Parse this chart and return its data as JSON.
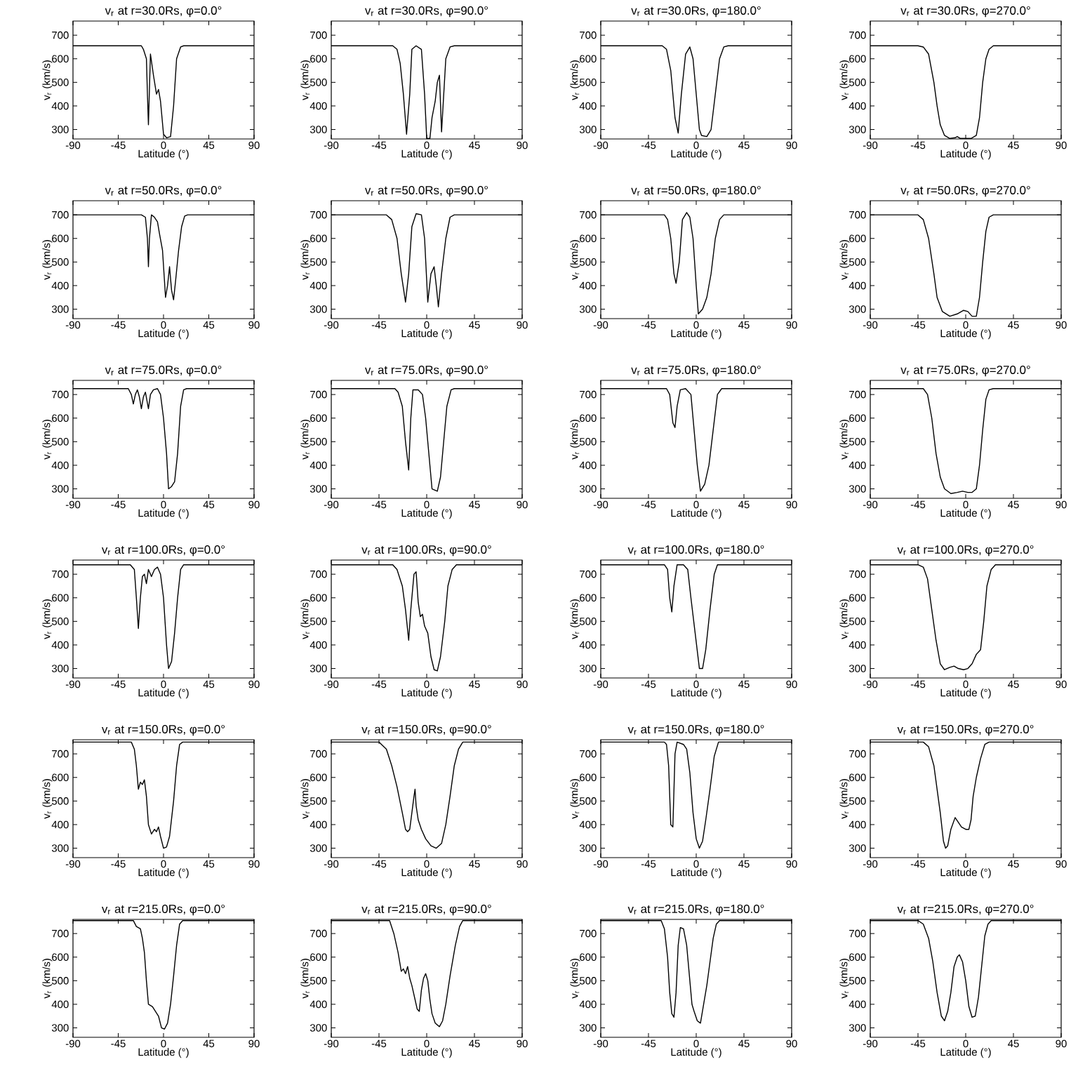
{
  "chart_data": [
    {
      "type": "line",
      "title": "v$_{r}$ at r=30.0Rs, φ=0.0°",
      "xlabel": "Latitude (°)",
      "ylabel": "v$_{r}$ (km/s)",
      "color": "#000000",
      "xlim": [
        -90,
        90
      ],
      "xticks": [
        -90,
        -45,
        0,
        45,
        90
      ],
      "ylim": [
        260,
        760
      ],
      "yticks": [
        300,
        400,
        500,
        600,
        700
      ],
      "x": [
        -90,
        -22,
        -20,
        -17,
        -16,
        -15,
        -13,
        -10,
        -7,
        -5,
        -3,
        0,
        3,
        7,
        10,
        13,
        17,
        20,
        90
      ],
      "values": [
        655,
        655,
        640,
        600,
        450,
        320,
        620,
        530,
        450,
        470,
        420,
        280,
        265,
        270,
        400,
        600,
        650,
        655,
        655
      ]
    },
    {
      "type": "line",
      "title": "v$_{r}$ at r=30.0Rs, φ=90.0°",
      "xlabel": "Latitude (°)",
      "ylabel": "v$_{r}$ (km/s)",
      "color": "#000000",
      "xlim": [
        -90,
        90
      ],
      "xticks": [
        -90,
        -45,
        0,
        45,
        90
      ],
      "ylim": [
        260,
        760
      ],
      "yticks": [
        300,
        400,
        500,
        600,
        700
      ],
      "x": [
        -90,
        -32,
        -28,
        -25,
        -22,
        -19,
        -16,
        -14,
        -10,
        -5,
        -2,
        0,
        3,
        5,
        8,
        10,
        12,
        14,
        18,
        22,
        26,
        90
      ],
      "values": [
        655,
        655,
        640,
        580,
        450,
        280,
        450,
        640,
        655,
        640,
        450,
        262,
        262,
        350,
        420,
        500,
        530,
        290,
        600,
        650,
        655,
        655
      ]
    },
    {
      "type": "line",
      "title": "v$_{r}$ at r=30.0Rs, φ=180.0°",
      "xlabel": "Latitude (°)",
      "ylabel": "v$_{r}$ (km/s)",
      "color": "#000000",
      "xlim": [
        -90,
        90
      ],
      "xticks": [
        -90,
        -45,
        0,
        45,
        90
      ],
      "ylim": [
        260,
        760
      ],
      "yticks": [
        300,
        400,
        500,
        600,
        700
      ],
      "x": [
        -90,
        -32,
        -28,
        -24,
        -20,
        -17,
        -14,
        -10,
        -6,
        -3,
        0,
        3,
        5,
        10,
        14,
        18,
        22,
        26,
        30,
        90
      ],
      "values": [
        655,
        655,
        640,
        550,
        350,
        285,
        450,
        620,
        650,
        600,
        450,
        300,
        275,
        270,
        300,
        450,
        600,
        650,
        655,
        655
      ]
    },
    {
      "type": "line",
      "title": "v$_{r}$ at r=30.0Rs, φ=270.0°",
      "xlabel": "Latitude (°)",
      "ylabel": "v$_{r}$ (km/s)",
      "color": "#000000",
      "xlim": [
        -90,
        90
      ],
      "xticks": [
        -90,
        -45,
        0,
        45,
        90
      ],
      "ylim": [
        260,
        760
      ],
      "yticks": [
        300,
        400,
        500,
        600,
        700
      ],
      "x": [
        -90,
        -45,
        -40,
        -35,
        -30,
        -27,
        -24,
        -20,
        -15,
        -10,
        -8,
        -5,
        0,
        5,
        10,
        13,
        16,
        19,
        22,
        26,
        90
      ],
      "values": [
        655,
        655,
        650,
        620,
        500,
        400,
        320,
        275,
        262,
        265,
        270,
        262,
        262,
        262,
        275,
        350,
        500,
        600,
        640,
        655,
        655
      ]
    },
    {
      "type": "line",
      "title": "v$_{r}$ at r=50.0Rs, φ=0.0°",
      "xlabel": "Latitude (°)",
      "ylabel": "v$_{r}$ (km/s)",
      "color": "#000000",
      "xlim": [
        -90,
        90
      ],
      "xticks": [
        -90,
        -45,
        0,
        45,
        90
      ],
      "ylim": [
        260,
        760
      ],
      "yticks": [
        300,
        400,
        500,
        600,
        700
      ],
      "x": [
        -90,
        -22,
        -18,
        -16,
        -15,
        -14,
        -12,
        -9,
        -6,
        -4,
        -1,
        2,
        4,
        6,
        8,
        10,
        12,
        15,
        18,
        21,
        24,
        90
      ],
      "values": [
        700,
        700,
        690,
        600,
        480,
        600,
        700,
        690,
        670,
        620,
        550,
        350,
        400,
        480,
        380,
        340,
        420,
        550,
        650,
        695,
        700,
        700
      ]
    },
    {
      "type": "line",
      "title": "v$_{r}$ at r=50.0Rs, φ=90.0°",
      "xlabel": "Latitude (°)",
      "ylabel": "v$_{r}$ (km/s)",
      "color": "#000000",
      "xlim": [
        -90,
        90
      ],
      "xticks": [
        -90,
        -45,
        0,
        45,
        90
      ],
      "ylim": [
        260,
        760
      ],
      "yticks": [
        300,
        400,
        500,
        600,
        700
      ],
      "x": [
        -90,
        -38,
        -33,
        -28,
        -24,
        -20,
        -17,
        -14,
        -10,
        -5,
        -2,
        1,
        4,
        7,
        9,
        11,
        14,
        18,
        22,
        26,
        90
      ],
      "values": [
        700,
        700,
        680,
        600,
        450,
        330,
        450,
        650,
        705,
        700,
        600,
        330,
        450,
        480,
        400,
        310,
        450,
        600,
        690,
        700,
        700
      ]
    },
    {
      "type": "line",
      "title": "v$_{r}$ at r=50.0Rs, φ=180.0°",
      "xlabel": "Latitude (°)",
      "ylabel": "v$_{r}$ (km/s)",
      "color": "#000000",
      "xlim": [
        -90,
        90
      ],
      "xticks": [
        -90,
        -45,
        0,
        45,
        90
      ],
      "ylim": [
        260,
        760
      ],
      "yticks": [
        300,
        400,
        500,
        600,
        700
      ],
      "x": [
        -90,
        -30,
        -27,
        -24,
        -21,
        -19,
        -16,
        -13,
        -9,
        -6,
        -3,
        0,
        2,
        6,
        10,
        14,
        18,
        22,
        26,
        90
      ],
      "values": [
        700,
        700,
        680,
        600,
        450,
        410,
        500,
        680,
        710,
        690,
        600,
        400,
        280,
        300,
        350,
        450,
        600,
        680,
        700,
        700
      ]
    },
    {
      "type": "line",
      "title": "v$_{r}$ at r=50.0Rs, φ=270.0°",
      "xlabel": "Latitude (°)",
      "ylabel": "v$_{r}$ (km/s)",
      "color": "#000000",
      "xlim": [
        -90,
        90
      ],
      "xticks": [
        -90,
        -45,
        0,
        45,
        90
      ],
      "ylim": [
        260,
        760
      ],
      "yticks": [
        300,
        400,
        500,
        600,
        700
      ],
      "x": [
        -90,
        -45,
        -40,
        -35,
        -30,
        -27,
        -22,
        -15,
        -8,
        -2,
        2,
        6,
        10,
        13,
        16,
        19,
        22,
        26,
        90
      ],
      "values": [
        700,
        700,
        680,
        600,
        450,
        350,
        290,
        270,
        280,
        295,
        290,
        270,
        270,
        350,
        500,
        630,
        690,
        700,
        700
      ]
    },
    {
      "type": "line",
      "title": "v$_{r}$ at r=75.0Rs, φ=0.0°",
      "xlabel": "Latitude (°)",
      "ylabel": "v$_{r}$ (km/s)",
      "color": "#000000",
      "xlim": [
        -90,
        90
      ],
      "xticks": [
        -90,
        -45,
        0,
        45,
        90
      ],
      "ylim": [
        260,
        760
      ],
      "yticks": [
        300,
        400,
        500,
        600,
        700
      ],
      "x": [
        -90,
        -35,
        -32,
        -30,
        -28,
        -26,
        -24,
        -22,
        -20,
        -18,
        -15,
        -13,
        -10,
        -6,
        -3,
        0,
        3,
        5,
        8,
        11,
        14,
        17,
        20,
        23,
        90
      ],
      "values": [
        725,
        725,
        700,
        660,
        700,
        720,
        690,
        640,
        690,
        710,
        640,
        700,
        720,
        725,
        700,
        600,
        450,
        300,
        310,
        330,
        450,
        650,
        720,
        725,
        725
      ]
    },
    {
      "type": "line",
      "title": "v$_{r}$ at r=75.0Rs, φ=90.0°",
      "xlabel": "Latitude (°)",
      "ylabel": "v$_{r}$ (km/s)",
      "color": "#000000",
      "xlim": [
        -90,
        90
      ],
      "xticks": [
        -90,
        -45,
        0,
        45,
        90
      ],
      "ylim": [
        260,
        760
      ],
      "yticks": [
        300,
        400,
        500,
        600,
        700
      ],
      "x": [
        -90,
        -30,
        -27,
        -23,
        -20,
        -17,
        -15,
        -13,
        -8,
        -4,
        -1,
        2,
        5,
        10,
        13,
        16,
        19,
        23,
        26,
        90
      ],
      "values": [
        725,
        725,
        710,
        650,
        500,
        380,
        600,
        720,
        720,
        700,
        600,
        450,
        300,
        290,
        350,
        500,
        650,
        720,
        725,
        725
      ]
    },
    {
      "type": "line",
      "title": "v$_{r}$ at r=75.0Rs, φ=180.0°",
      "xlabel": "Latitude (°)",
      "ylabel": "v$_{r}$ (km/s)",
      "color": "#000000",
      "xlim": [
        -90,
        90
      ],
      "xticks": [
        -90,
        -45,
        0,
        45,
        90
      ],
      "ylim": [
        260,
        760
      ],
      "yticks": [
        300,
        400,
        500,
        600,
        700
      ],
      "x": [
        -90,
        -28,
        -25,
        -22,
        -20,
        -18,
        -15,
        -10,
        -5,
        -2,
        1,
        4,
        8,
        12,
        16,
        20,
        24,
        90
      ],
      "values": [
        725,
        725,
        700,
        580,
        560,
        650,
        720,
        725,
        700,
        550,
        400,
        290,
        320,
        400,
        550,
        700,
        725,
        725
      ]
    },
    {
      "type": "line",
      "title": "v$_{r}$ at r=75.0Rs, φ=270.0°",
      "xlabel": "Latitude (°)",
      "ylabel": "v$_{r}$ (km/s)",
      "color": "#000000",
      "xlim": [
        -90,
        90
      ],
      "xticks": [
        -90,
        -45,
        0,
        45,
        90
      ],
      "ylim": [
        260,
        760
      ],
      "yticks": [
        300,
        400,
        500,
        600,
        700
      ],
      "x": [
        -90,
        -40,
        -36,
        -32,
        -28,
        -24,
        -20,
        -14,
        -8,
        -3,
        2,
        6,
        10,
        13,
        16,
        19,
        22,
        26,
        90
      ],
      "values": [
        725,
        725,
        700,
        600,
        450,
        350,
        300,
        280,
        285,
        290,
        285,
        285,
        300,
        400,
        550,
        680,
        720,
        725,
        725
      ]
    },
    {
      "type": "line",
      "title": "v$_{r}$ at r=100.0Rs, φ=0.0°",
      "xlabel": "Latitude (°)",
      "ylabel": "v$_{r}$ (km/s)",
      "color": "#000000",
      "xlim": [
        -90,
        90
      ],
      "xticks": [
        -90,
        -45,
        0,
        45,
        90
      ],
      "ylim": [
        260,
        760
      ],
      "yticks": [
        300,
        400,
        500,
        600,
        700
      ],
      "x": [
        -90,
        -33,
        -29,
        -27,
        -25,
        -23,
        -21,
        -19,
        -17,
        -15,
        -12,
        -9,
        -6,
        -3,
        0,
        3,
        5,
        8,
        11,
        14,
        17,
        20,
        90
      ],
      "values": [
        740,
        740,
        720,
        600,
        470,
        600,
        690,
        700,
        660,
        720,
        690,
        720,
        730,
        700,
        600,
        400,
        300,
        330,
        450,
        600,
        720,
        740,
        740
      ]
    },
    {
      "type": "line",
      "title": "v$_{r}$ at r=100.0Rs, φ=90.0°",
      "xlabel": "Latitude (°)",
      "ylabel": "v$_{r}$ (km/s)",
      "color": "#000000",
      "xlim": [
        -90,
        90
      ],
      "xticks": [
        -90,
        -45,
        0,
        45,
        90
      ],
      "ylim": [
        260,
        760
      ],
      "yticks": [
        300,
        400,
        500,
        600,
        700
      ],
      "x": [
        -90,
        -32,
        -28,
        -23,
        -20,
        -17,
        -15,
        -12,
        -10,
        -8,
        -6,
        -4,
        -2,
        1,
        4,
        7,
        10,
        13,
        17,
        20,
        24,
        28,
        90
      ],
      "values": [
        740,
        740,
        720,
        650,
        550,
        420,
        550,
        700,
        710,
        580,
        520,
        530,
        480,
        450,
        350,
        295,
        290,
        350,
        500,
        650,
        720,
        740,
        740
      ]
    },
    {
      "type": "line",
      "title": "v$_{r}$ at r=100.0Rs, φ=180.0°",
      "xlabel": "Latitude (°)",
      "ylabel": "v$_{r}$ (km/s)",
      "color": "#000000",
      "xlim": [
        -90,
        90
      ],
      "xticks": [
        -90,
        -45,
        0,
        45,
        90
      ],
      "ylim": [
        260,
        760
      ],
      "yticks": [
        300,
        400,
        500,
        600,
        700
      ],
      "x": [
        -90,
        -30,
        -27,
        -25,
        -23,
        -21,
        -18,
        -12,
        -8,
        -5,
        -1,
        3,
        6,
        9,
        13,
        17,
        20,
        90
      ],
      "values": [
        740,
        740,
        720,
        600,
        540,
        650,
        740,
        740,
        720,
        600,
        450,
        300,
        300,
        380,
        550,
        700,
        740,
        740
      ]
    },
    {
      "type": "line",
      "title": "v$_{r}$ at r=100.0Rs, φ=270.0°",
      "xlabel": "Latitude (°)",
      "ylabel": "v$_{r}$ (km/s)",
      "color": "#000000",
      "xlim": [
        -90,
        90
      ],
      "xticks": [
        -90,
        -45,
        0,
        45,
        90
      ],
      "ylim": [
        260,
        760
      ],
      "yticks": [
        300,
        400,
        500,
        600,
        700
      ],
      "x": [
        -90,
        -45,
        -40,
        -36,
        -32,
        -28,
        -24,
        -20,
        -15,
        -11,
        -7,
        -2,
        2,
        6,
        10,
        14,
        17,
        20,
        24,
        28,
        90
      ],
      "values": [
        740,
        740,
        730,
        680,
        550,
        420,
        320,
        295,
        305,
        310,
        300,
        295,
        300,
        320,
        360,
        380,
        500,
        650,
        720,
        740,
        740
      ]
    },
    {
      "type": "line",
      "title": "v$_{r}$ at r=150.0Rs, φ=0.0°",
      "xlabel": "Latitude (°)",
      "ylabel": "v$_{r}$ (km/s)",
      "color": "#000000",
      "xlim": [
        -90,
        90
      ],
      "xticks": [
        -90,
        -45,
        0,
        45,
        90
      ],
      "ylim": [
        260,
        760
      ],
      "yticks": [
        300,
        400,
        500,
        600,
        700
      ],
      "x": [
        -90,
        -32,
        -29,
        -27,
        -25,
        -23,
        -21,
        -19,
        -17,
        -15,
        -12,
        -9,
        -7,
        -5,
        -3,
        0,
        3,
        6,
        10,
        13,
        16,
        19,
        90
      ],
      "values": [
        750,
        750,
        720,
        650,
        550,
        580,
        570,
        590,
        520,
        400,
        360,
        380,
        370,
        390,
        350,
        300,
        305,
        350,
        500,
        650,
        740,
        750,
        750
      ]
    },
    {
      "type": "line",
      "title": "v$_{r}$ at r=150.0Rs, φ=90.0°",
      "xlabel": "Latitude (°)",
      "ylabel": "v$_{r}$ (km/s)",
      "color": "#000000",
      "xlim": [
        -90,
        90
      ],
      "xticks": [
        -90,
        -45,
        0,
        45,
        90
      ],
      "ylim": [
        260,
        760
      ],
      "yticks": [
        300,
        400,
        500,
        600,
        700
      ],
      "x": [
        -90,
        -45,
        -38,
        -33,
        -28,
        -23,
        -20,
        -18,
        -16,
        -14,
        -12,
        -11,
        -10,
        -8,
        -5,
        -1,
        4,
        9,
        14,
        18,
        22,
        26,
        30,
        34,
        90
      ],
      "values": [
        750,
        750,
        720,
        650,
        560,
        450,
        380,
        370,
        380,
        450,
        520,
        550,
        480,
        420,
        380,
        340,
        310,
        300,
        320,
        400,
        520,
        650,
        720,
        750,
        750
      ]
    },
    {
      "type": "line",
      "title": "v$_{r}$ at r=150.0Rs, φ=180.0°",
      "xlabel": "Latitude (°)",
      "ylabel": "v$_{r}$ (km/s)",
      "color": "#000000",
      "xlim": [
        -90,
        90
      ],
      "xticks": [
        -90,
        -45,
        0,
        45,
        90
      ],
      "ylim": [
        260,
        760
      ],
      "yticks": [
        300,
        400,
        500,
        600,
        700
      ],
      "x": [
        -90,
        -30,
        -28,
        -26,
        -24,
        -22,
        -20,
        -18,
        -12,
        -9,
        -6,
        -3,
        0,
        3,
        6,
        9,
        13,
        17,
        21,
        90
      ],
      "values": [
        750,
        750,
        740,
        650,
        400,
        390,
        700,
        750,
        740,
        720,
        620,
        450,
        340,
        300,
        330,
        420,
        550,
        690,
        750,
        750
      ]
    },
    {
      "type": "line",
      "title": "v$_{r}$ at r=150.0Rs, φ=270.0°",
      "xlabel": "Latitude (°)",
      "ylabel": "v$_{r}$ (km/s)",
      "color": "#000000",
      "xlim": [
        -90,
        90
      ],
      "xticks": [
        -90,
        -45,
        0,
        45,
        90
      ],
      "ylim": [
        260,
        760
      ],
      "yticks": [
        300,
        400,
        500,
        600,
        700
      ],
      "x": [
        -90,
        -40,
        -35,
        -30,
        -27,
        -24,
        -21,
        -19,
        -17,
        -14,
        -10,
        -7,
        -4,
        0,
        3,
        5,
        7,
        10,
        14,
        18,
        22,
        90
      ],
      "values": [
        750,
        750,
        730,
        650,
        550,
        450,
        330,
        300,
        310,
        380,
        430,
        410,
        390,
        380,
        380,
        420,
        520,
        600,
        680,
        740,
        750,
        750
      ]
    },
    {
      "type": "line",
      "title": "v$_{r}$ at r=215.0Rs, φ=0.0°",
      "xlabel": "Latitude (°)",
      "ylabel": "v$_{r}$ (km/s)",
      "color": "#000000",
      "xlim": [
        -90,
        90
      ],
      "xticks": [
        -90,
        -45,
        0,
        45,
        90
      ],
      "ylim": [
        260,
        760
      ],
      "yticks": [
        300,
        400,
        500,
        600,
        700
      ],
      "x": [
        -90,
        -30,
        -27,
        -23,
        -21,
        -19,
        -17,
        -15,
        -11,
        -8,
        -5,
        -2,
        1,
        4,
        7,
        10,
        13,
        16,
        19,
        90
      ],
      "values": [
        755,
        755,
        730,
        720,
        680,
        620,
        500,
        400,
        390,
        370,
        350,
        300,
        295,
        320,
        400,
        520,
        650,
        740,
        755,
        755
      ]
    },
    {
      "type": "line",
      "title": "v$_{r}$ at r=215.0Rs, φ=90.0°",
      "xlabel": "Latitude (°)",
      "ylabel": "v$_{r}$ (km/s)",
      "color": "#000000",
      "xlim": [
        -90,
        90
      ],
      "xticks": [
        -90,
        -45,
        0,
        45,
        90
      ],
      "ylim": [
        260,
        760
      ],
      "yticks": [
        300,
        400,
        500,
        600,
        700
      ],
      "x": [
        -90,
        -35,
        -31,
        -27,
        -24,
        -22,
        -20,
        -18,
        -16,
        -14,
        -11,
        -9,
        -7,
        -5,
        -3,
        -1,
        1,
        3,
        5,
        8,
        12,
        15,
        18,
        22,
        27,
        31,
        34,
        90
      ],
      "values": [
        755,
        755,
        700,
        620,
        540,
        550,
        530,
        560,
        510,
        480,
        420,
        380,
        370,
        460,
        510,
        530,
        500,
        420,
        360,
        320,
        305,
        330,
        400,
        520,
        650,
        730,
        755,
        755
      ]
    },
    {
      "type": "line",
      "title": "v$_{r}$ at r=215.0Rs, φ=180.0°",
      "xlabel": "Latitude (°)",
      "ylabel": "v$_{r}$ (km/s)",
      "color": "#000000",
      "xlim": [
        -90,
        90
      ],
      "xticks": [
        -90,
        -45,
        0,
        45,
        90
      ],
      "ylim": [
        260,
        760
      ],
      "yticks": [
        300,
        400,
        500,
        600,
        700
      ],
      "x": [
        -90,
        -33,
        -30,
        -27,
        -25,
        -23,
        -21,
        -19,
        -17,
        -15,
        -12,
        -9,
        -6,
        -4,
        -2,
        1,
        4,
        7,
        10,
        13,
        16,
        19,
        22,
        90
      ],
      "values": [
        755,
        755,
        720,
        600,
        450,
        360,
        345,
        450,
        650,
        725,
        720,
        650,
        500,
        400,
        370,
        330,
        320,
        400,
        480,
        580,
        680,
        740,
        755,
        755
      ]
    },
    {
      "type": "line",
      "title": "v$_{r}$ at r=215.0Rs, φ=270.0°",
      "xlabel": "Latitude (°)",
      "ylabel": "v$_{r}$ (km/s)",
      "color": "#000000",
      "xlim": [
        -90,
        90
      ],
      "xticks": [
        -90,
        -45,
        0,
        45,
        90
      ],
      "ylim": [
        260,
        760
      ],
      "yticks": [
        300,
        400,
        500,
        600,
        700
      ],
      "x": [
        -90,
        -45,
        -40,
        -35,
        -31,
        -27,
        -23,
        -20,
        -17,
        -14,
        -11,
        -8,
        -6,
        -3,
        0,
        3,
        6,
        9,
        12,
        15,
        18,
        21,
        24,
        90
      ],
      "values": [
        755,
        755,
        740,
        680,
        580,
        450,
        350,
        330,
        370,
        450,
        560,
        600,
        610,
        580,
        500,
        390,
        345,
        350,
        430,
        560,
        690,
        740,
        755,
        755
      ]
    }
  ]
}
